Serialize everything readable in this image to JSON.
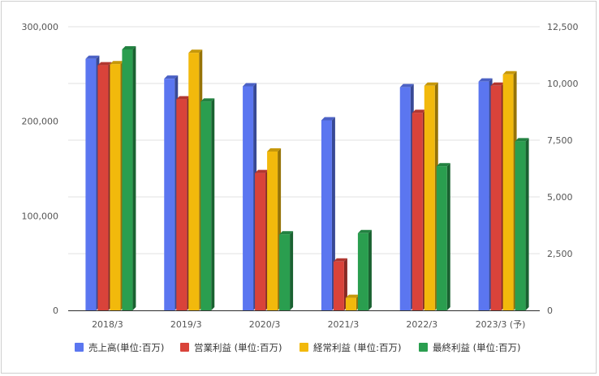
{
  "chart_data": {
    "type": "bar",
    "style": "3d-clustered",
    "categories": [
      "2018/3",
      "2019/3",
      "2020/3",
      "2021/3",
      "2022/3",
      "2023/3 (予)"
    ],
    "y_left": {
      "min": 0,
      "max": 300000,
      "ticks": [
        "0",
        "100,000",
        "200,000",
        "300,000"
      ],
      "tick_values": [
        0,
        100000,
        200000,
        300000
      ],
      "applies_to": [
        "売上高(単位:百万)"
      ]
    },
    "y_right": {
      "min": 0,
      "max": 12500,
      "ticks": [
        "0",
        "2,500",
        "5,000",
        "7,500",
        "10,000",
        "12,500"
      ],
      "tick_values": [
        0,
        2500,
        5000,
        7500,
        10000,
        12500
      ],
      "applies_to": [
        "営業利益 (単位:百万)",
        "経常利益 (単位:百万)",
        "最終利益 (単位:百万)"
      ]
    },
    "grid": true,
    "legend_position": "bottom",
    "series": [
      {
        "name": "売上高(単位:百万)",
        "axis": "left",
        "color": "#5b76f0",
        "values": [
          266000,
          245000,
          237000,
          201000,
          236000,
          242000
        ]
      },
      {
        "name": "営業利益 (単位:百万)",
        "axis": "right",
        "color": "#d9433a",
        "values": [
          10800,
          9300,
          6050,
          2150,
          8700,
          9900
        ]
      },
      {
        "name": "経常利益 (単位:百万)",
        "axis": "right",
        "color": "#f2b90c",
        "values": [
          10850,
          11350,
          7000,
          550,
          9900,
          10400
        ]
      },
      {
        "name": "最終利益 (単位:百万)",
        "axis": "right",
        "color": "#2a9e4f",
        "values": [
          11500,
          9200,
          3350,
          3400,
          6350,
          7450
        ]
      }
    ]
  }
}
